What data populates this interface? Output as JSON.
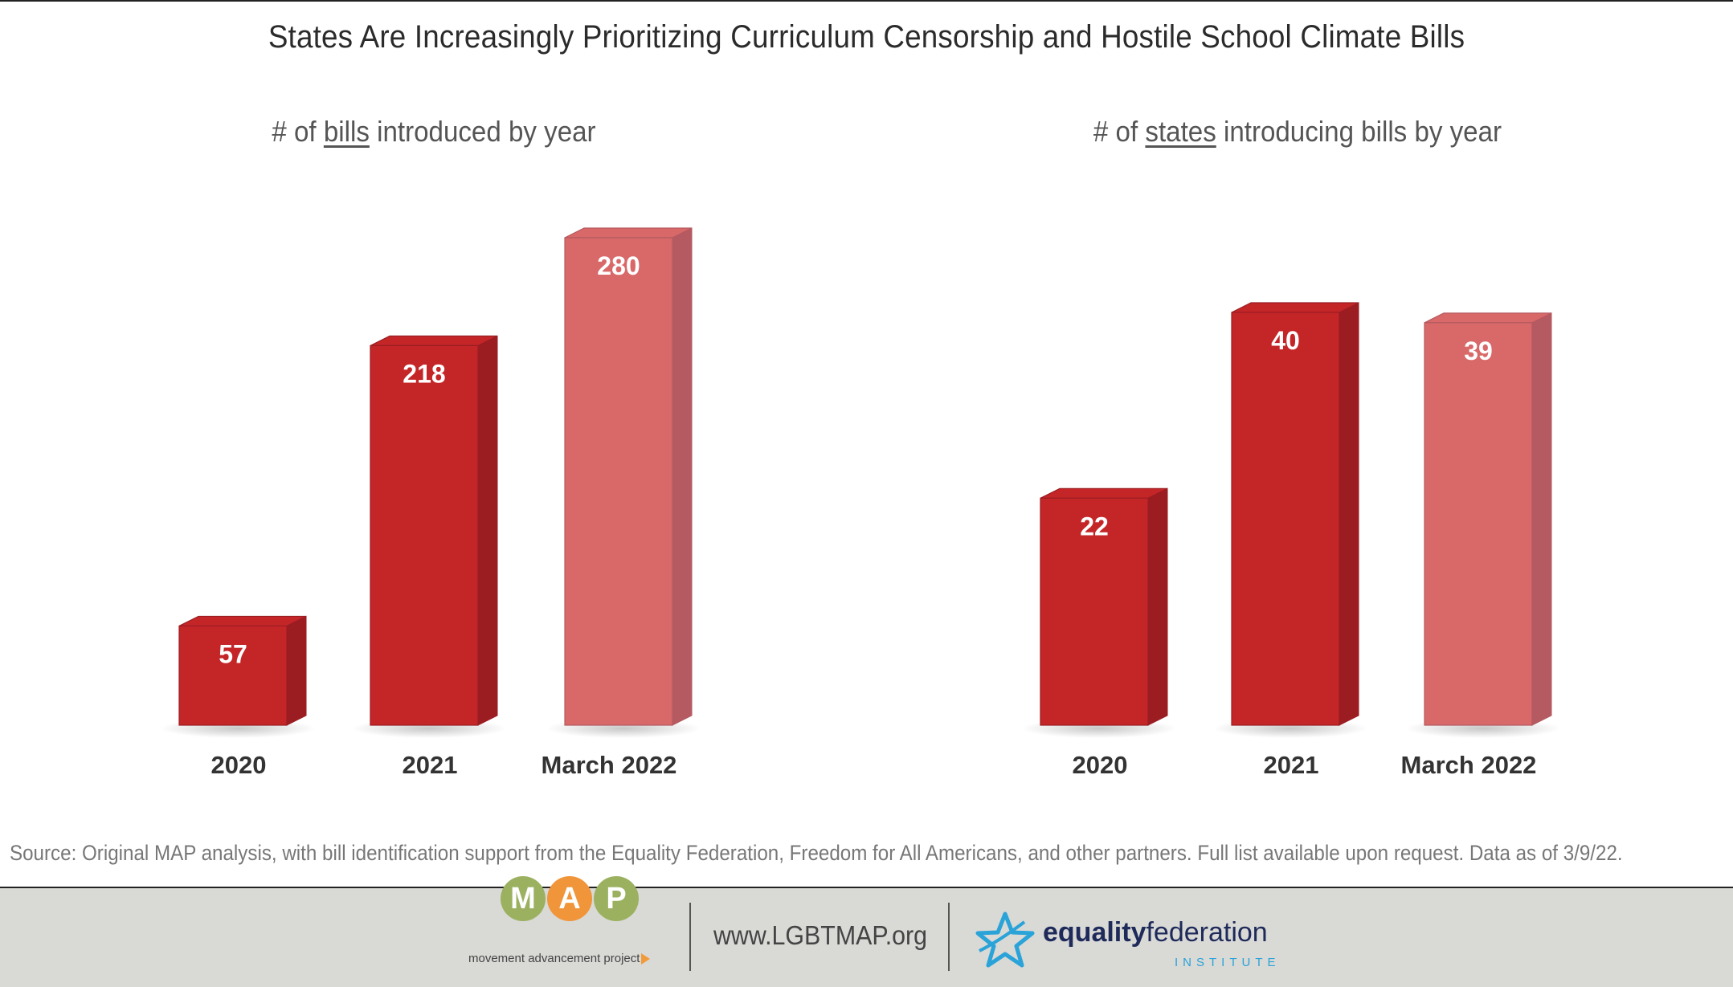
{
  "title": "States Are Increasingly Prioritizing Curriculum Censorship and Hostile School Climate Bills",
  "left_subtitle": {
    "pre": "# of ",
    "underlined": "bills",
    "post": " introduced by year"
  },
  "right_subtitle": {
    "pre": "# of ",
    "underlined": "states",
    "post": " introducing bills by year"
  },
  "colors": {
    "bar": "#c42628",
    "bar_highlight": "#d96868",
    "bar_side": "#9b1d22",
    "bar_side_highlight": "#b45a60"
  },
  "chart_data": [
    {
      "type": "bar",
      "title": "# of bills introduced by year",
      "categories": [
        "2020",
        "2021",
        "March 2022"
      ],
      "values": [
        57,
        218,
        280
      ],
      "highlight_index": 2,
      "ylim": [
        0,
        280
      ]
    },
    {
      "type": "bar",
      "title": "# of states introducing bills by year",
      "categories": [
        "2020",
        "2021",
        "March 2022"
      ],
      "values": [
        22,
        40,
        39
      ],
      "highlight_index": 2,
      "ylim": [
        0,
        40
      ]
    }
  ],
  "source": "Source: Original MAP analysis, with bill identification support from the Equality Federation, Freedom for All Americans, and other partners. Full list available upon request. Data as of 3/9/22.",
  "footer": {
    "map_letters": [
      "M",
      "A",
      "P"
    ],
    "map_tagline": "movement advancement project",
    "url": "www.LGBTMAP.org",
    "ef_bold": "equality",
    "ef_light": "federation",
    "ef_sub": "INSTITUTE"
  }
}
